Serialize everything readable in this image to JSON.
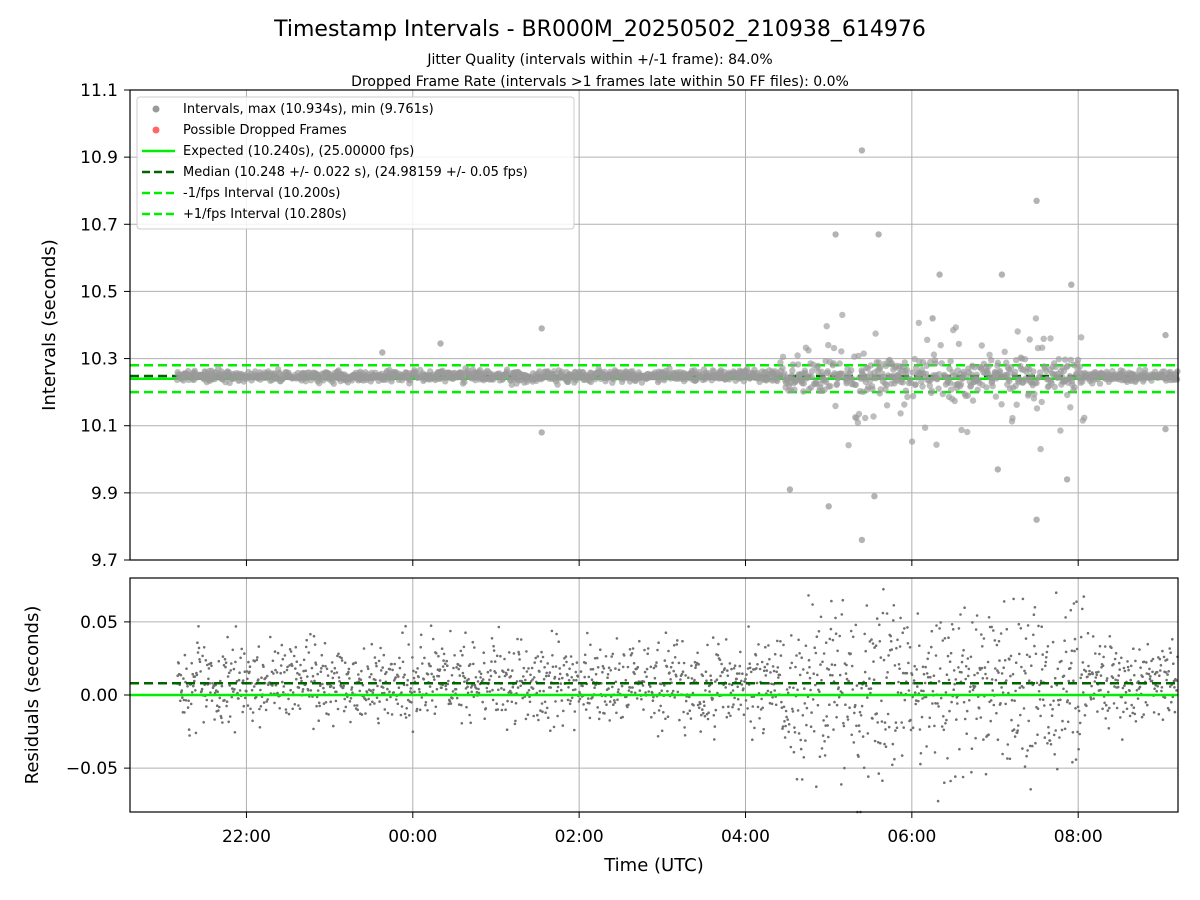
{
  "figure": {
    "title": "Timestamp Intervals - BR000M_20250502_210938_614976",
    "subtitle1": "Jitter Quality (intervals within +/-1 frame): 84.0%",
    "subtitle2": "Dropped Frame Rate (intervals >1 frames late within 50 FF files): 0.0%"
  },
  "chart_data": [
    {
      "type": "scatter",
      "ylabel": "Intervals (seconds)",
      "ylim": [
        9.7,
        11.1
      ],
      "yticks": [
        "9.7",
        "9.9",
        "10.1",
        "10.3",
        "10.5",
        "10.7",
        "10.9",
        "11.1"
      ],
      "ytick_values": [
        9.7,
        9.9,
        10.1,
        10.3,
        10.5,
        10.7,
        10.9,
        11.1
      ],
      "x_range_utc": [
        "2025-05-02T20:36",
        "2025-05-03T09:12"
      ],
      "x_tick_times": [
        "2025-05-02T22:00",
        "2025-05-03T00:00",
        "2025-05-03T02:00",
        "2025-05-03T04:00",
        "2025-05-03T06:00",
        "2025-05-03T08:00"
      ],
      "grid": true,
      "legend_placement": "top-left",
      "legend": [
        {
          "label": "Intervals, max (10.934s), min (9.761s)",
          "kind": "marker",
          "color": "#999999"
        },
        {
          "label": "Possible Dropped Frames",
          "kind": "marker",
          "color": "#ff6666"
        },
        {
          "label": "Expected (10.240s), (25.00000 fps)",
          "kind": "solid",
          "color": "#00ee00"
        },
        {
          "label": "Median (10.248 +/- 0.022 s), (24.98159 +/- 0.05 fps)",
          "kind": "dashed",
          "color": "#006400"
        },
        {
          "label": "-1/fps Interval (10.200s)",
          "kind": "dashed",
          "color": "#00ee00"
        },
        {
          "label": "+1/fps Interval (10.280s)",
          "kind": "dashed",
          "color": "#00ee00"
        }
      ],
      "reference_lines": [
        {
          "name": "Expected",
          "y": 10.24,
          "style": "solid",
          "color": "#00ee00"
        },
        {
          "name": "Median",
          "y": 10.248,
          "style": "dashed",
          "color": "#006400"
        },
        {
          "name": "-1/fps Interval",
          "y": 10.2,
          "style": "dashed",
          "color": "#00ee00"
        },
        {
          "name": "+1/fps Interval",
          "y": 10.28,
          "style": "dashed",
          "color": "#00ee00"
        }
      ],
      "series": [
        {
          "name": "Intervals",
          "color": "#999999",
          "note_points": [
            [
              "2025-05-02T23:38",
              10.318
            ],
            [
              "2025-05-03T00:20",
              10.345
            ],
            [
              "2025-05-03T01:33",
              10.39
            ],
            [
              "2025-05-03T01:33",
              10.08
            ],
            [
              "2025-05-03T05:05",
              10.67
            ],
            [
              "2025-05-03T05:24",
              10.92
            ],
            [
              "2025-05-03T05:36",
              10.67
            ],
            [
              "2025-05-03T04:32",
              9.91
            ],
            [
              "2025-05-03T05:00",
              9.86
            ],
            [
              "2025-05-03T05:24",
              9.76
            ],
            [
              "2025-05-03T05:33",
              9.89
            ],
            [
              "2025-05-03T07:30",
              10.77
            ],
            [
              "2025-05-03T07:30",
              9.82
            ],
            [
              "2025-05-03T07:05",
              10.55
            ],
            [
              "2025-05-03T07:55",
              10.52
            ],
            [
              "2025-05-03T09:03",
              10.37
            ],
            [
              "2025-05-03T09:03",
              10.09
            ],
            [
              "2025-05-03T06:20",
              10.55
            ],
            [
              "2025-05-03T06:15",
              10.42
            ],
            [
              "2025-05-03T07:02",
              9.97
            ],
            [
              "2025-05-03T07:52",
              9.94
            ]
          ]
        }
      ]
    },
    {
      "type": "scatter",
      "ylabel": "Residuals (seconds)",
      "xlabel": "Time (UTC)",
      "ylim": [
        -0.08,
        0.08
      ],
      "yticks": [
        "−0.05",
        "0.00",
        "0.05"
      ],
      "ytick_values": [
        -0.05,
        0.0,
        0.05
      ],
      "xticks": [
        "22:00",
        "00:00",
        "02:00",
        "04:00",
        "06:00",
        "08:00"
      ],
      "grid": true,
      "reference_lines": [
        {
          "name": "Expected",
          "y": 0.0,
          "style": "solid",
          "color": "#00ee00"
        },
        {
          "name": "Median",
          "y": 0.008,
          "style": "dashed",
          "color": "#006400"
        }
      ],
      "series": [
        {
          "name": "Residuals",
          "color": "#707070"
        }
      ]
    }
  ]
}
